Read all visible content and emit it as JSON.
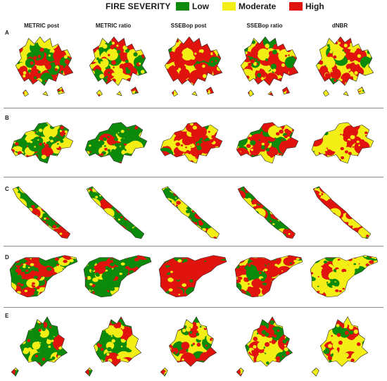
{
  "legend": {
    "title": "FIRE SEVERITY",
    "items": [
      {
        "label": "Low",
        "color": "#0b8a0b"
      },
      {
        "label": "Moderate",
        "color": "#f2ee16"
      },
      {
        "label": "High",
        "color": "#e0130e"
      }
    ]
  },
  "columns": [
    "METRIC post",
    "METRIC ratio",
    "SSEBop post",
    "SSEBop ratio",
    "dNBR"
  ],
  "rows": [
    {
      "label": "A",
      "mix": [
        [
          0.22,
          0.28,
          0.5
        ],
        [
          0.22,
          0.28,
          0.5
        ],
        [
          0.12,
          0.18,
          0.7
        ],
        [
          0.15,
          0.2,
          0.65
        ],
        [
          0.15,
          0.55,
          0.3
        ]
      ]
    },
    {
      "label": "B",
      "mix": [
        [
          0.35,
          0.4,
          0.25
        ],
        [
          0.65,
          0.2,
          0.15
        ],
        [
          0.1,
          0.2,
          0.7
        ],
        [
          0.25,
          0.15,
          0.6
        ],
        [
          0.05,
          0.55,
          0.4
        ]
      ]
    },
    {
      "label": "C",
      "mix": [
        [
          0.35,
          0.4,
          0.25
        ],
        [
          0.4,
          0.35,
          0.25
        ],
        [
          0.35,
          0.35,
          0.3
        ],
        [
          0.35,
          0.3,
          0.35
        ],
        [
          0.05,
          0.45,
          0.5
        ]
      ]
    },
    {
      "label": "D",
      "mix": [
        [
          0.3,
          0.2,
          0.5
        ],
        [
          0.6,
          0.15,
          0.25
        ],
        [
          0.15,
          0.1,
          0.75
        ],
        [
          0.2,
          0.15,
          0.65
        ],
        [
          0.15,
          0.65,
          0.2
        ]
      ]
    },
    {
      "label": "E",
      "mix": [
        [
          0.35,
          0.45,
          0.2
        ],
        [
          0.35,
          0.4,
          0.25
        ],
        [
          0.2,
          0.35,
          0.45
        ],
        [
          0.2,
          0.35,
          0.45
        ],
        [
          0.15,
          0.6,
          0.25
        ]
      ]
    }
  ]
}
